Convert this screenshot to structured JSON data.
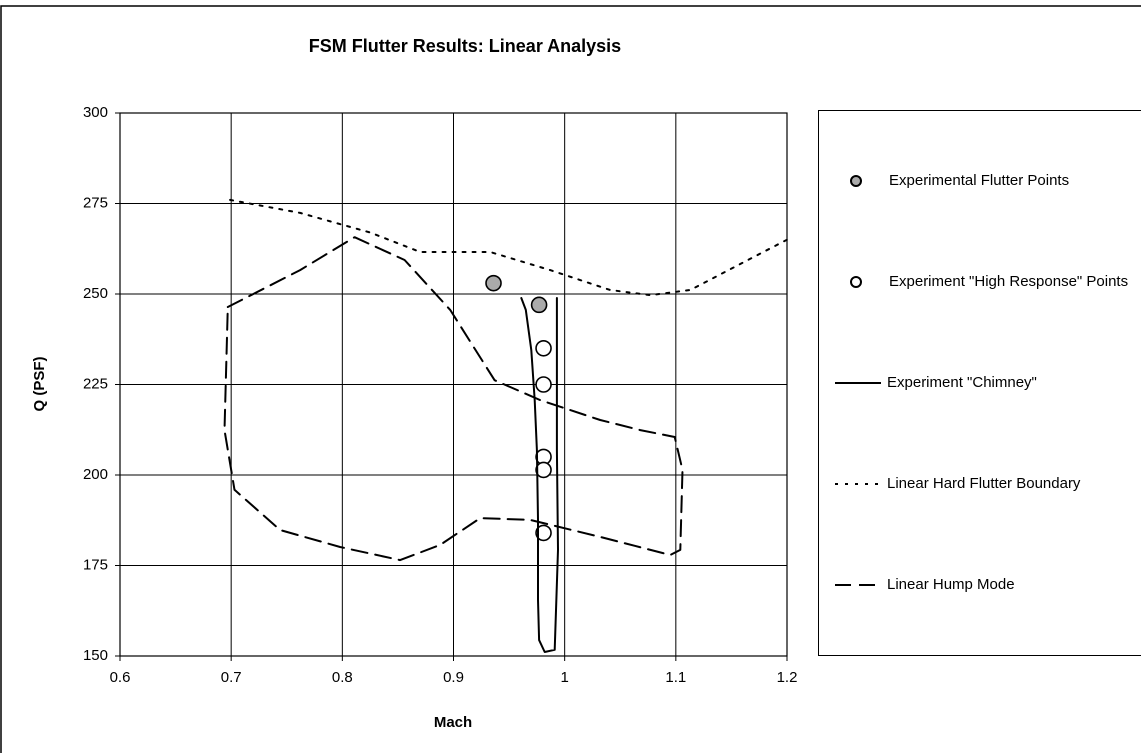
{
  "chart_data": {
    "type": "scatter",
    "title": "FSM Flutter Results:  Linear Analysis",
    "xlabel": "Mach",
    "ylabel": "Q (PSF)",
    "xlim": [
      0.6,
      1.2
    ],
    "xticks": [
      0.6,
      0.7,
      0.8,
      0.9,
      1,
      1.1,
      1.2
    ],
    "ylim": [
      150,
      300
    ],
    "yticks": [
      150,
      175,
      200,
      225,
      250,
      275,
      300
    ],
    "grid": true,
    "legend": "right",
    "series": [
      {
        "name": "Experimental Flutter Points",
        "mode": "markers",
        "color": "#000000",
        "fill": "#aaaaaa",
        "x": [
          0.936,
          0.977
        ],
        "values": [
          253,
          247
        ]
      },
      {
        "name": "Experiment \"High Response\" Points",
        "mode": "markers",
        "color": "#000000",
        "fill": "#ffffff",
        "x": [
          0.981,
          0.981,
          0.981,
          0.981,
          0.981
        ],
        "values": [
          235,
          225,
          205,
          201.4,
          184
        ]
      },
      {
        "name": "Experiment \"Chimney\"",
        "mode": "line",
        "dash": "solid",
        "color": "#000000",
        "x": [
          0.961,
          0.965,
          0.97,
          0.973,
          0.975,
          0.976,
          0.976,
          0.977,
          0.982,
          0.991,
          0.994,
          0.993,
          0.993,
          0.993,
          0.993
        ],
        "values": [
          248.9,
          245.6,
          234.5,
          220.7,
          206.9,
          187.6,
          165.5,
          154.4,
          151.1,
          151.7,
          179.3,
          206.9,
          234.5,
          248.9,
          240
        ]
      },
      {
        "name": "Linear Hard Flutter Boundary",
        "mode": "line",
        "dash": "dotted",
        "color": "#000000",
        "x": [
          0.699,
          0.762,
          0.825,
          0.87,
          0.933,
          0.987,
          1.041,
          1.077,
          1.113,
          1.2
        ],
        "values": [
          276,
          272.4,
          267,
          261.6,
          261.6,
          256.6,
          251.1,
          249.7,
          251.1,
          265
        ]
      },
      {
        "name": "Linear Hump Mode",
        "mode": "line",
        "dash": "dashed",
        "color": "#000000",
        "x": [
          0.697,
          0.762,
          0.811,
          0.856,
          0.897,
          0.937,
          0.978,
          1.032,
          1.068,
          1.099,
          1.106,
          1.104,
          1.095,
          1.032,
          0.969,
          0.924,
          0.888,
          0.852,
          0.798,
          0.744,
          0.703,
          0.694,
          0.697
        ],
        "values": [
          246.4,
          256.6,
          265.7,
          259.4,
          245.6,
          226.2,
          220.7,
          215.2,
          212.4,
          210.5,
          201.4,
          179.3,
          177.9,
          182.9,
          187.6,
          188.1,
          180.7,
          176.5,
          180.1,
          184.8,
          195.9,
          212.4,
          246.4
        ]
      }
    ]
  }
}
